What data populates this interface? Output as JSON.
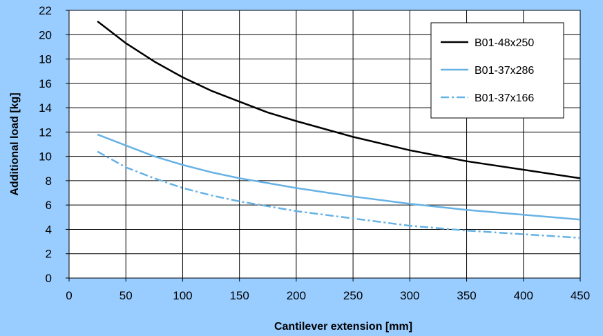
{
  "chart_data": {
    "type": "line",
    "title": "",
    "xlabel": "Cantilever extension [mm]",
    "ylabel": "Additional load [kg]",
    "xlim": [
      0,
      450
    ],
    "ylim": [
      0,
      22
    ],
    "x_ticks": [
      0,
      50,
      100,
      150,
      200,
      250,
      300,
      350,
      400,
      450
    ],
    "y_ticks": [
      0,
      2,
      4,
      6,
      8,
      10,
      12,
      14,
      16,
      18,
      20,
      22
    ],
    "grid": true,
    "legend_position": "top-right",
    "colors": {
      "background": "#99CCFF",
      "plot_area": "#FFFFFF",
      "grid": "#000000"
    },
    "series": [
      {
        "name": "B01-48x250",
        "color": "#000000",
        "dash": "solid",
        "x": [
          25,
          37.5,
          50,
          75,
          100,
          125,
          150,
          175,
          200,
          250,
          300,
          350,
          400,
          450
        ],
        "y": [
          21.1,
          20.2,
          19.3,
          17.8,
          16.5,
          15.4,
          14.5,
          13.6,
          12.9,
          11.6,
          10.5,
          9.6,
          8.9,
          8.2
        ]
      },
      {
        "name": "B01-37x286",
        "color": "#66B2E5",
        "dash": "solid",
        "x": [
          25,
          50,
          75,
          100,
          125,
          150,
          175,
          200,
          250,
          300,
          350,
          400,
          450
        ],
        "y": [
          11.8,
          10.9,
          10.0,
          9.3,
          8.7,
          8.2,
          7.8,
          7.4,
          6.7,
          6.1,
          5.6,
          5.2,
          4.8
        ]
      },
      {
        "name": "B01-37x166",
        "color": "#66B2E5",
        "dash": "dashdot",
        "x": [
          25,
          50,
          75,
          100,
          125,
          150,
          175,
          200,
          250,
          300,
          350,
          400,
          450
        ],
        "y": [
          10.4,
          9.1,
          8.2,
          7.4,
          6.8,
          6.3,
          5.9,
          5.5,
          4.9,
          4.3,
          3.9,
          3.6,
          3.3
        ]
      }
    ]
  }
}
